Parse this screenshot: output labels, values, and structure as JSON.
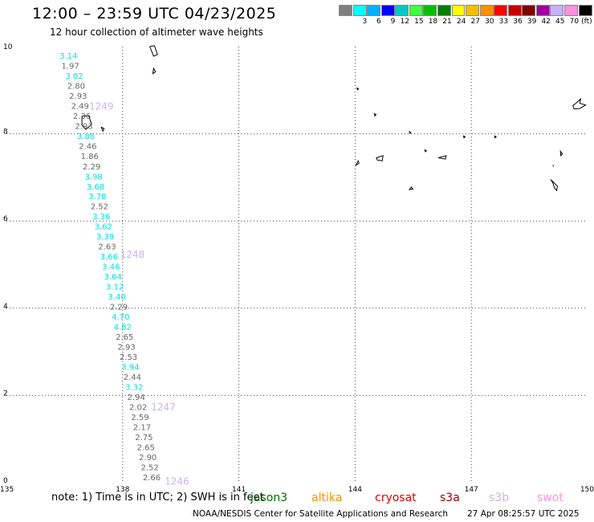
{
  "header": {
    "title": "12:00 – 23:59 UTC 04/23/2025",
    "subtitle": "12 hour collection of altimeter wave heights"
  },
  "color_scale": {
    "unit_label": "(ft)",
    "bins": [
      {
        "label": "",
        "color": "#808080"
      },
      {
        "label": "3",
        "color": "#00ffff"
      },
      {
        "label": "6",
        "color": "#00b0ff"
      },
      {
        "label": "9",
        "color": "#0000ff"
      },
      {
        "label": "12",
        "color": "#00c8c8"
      },
      {
        "label": "15",
        "color": "#40ff40"
      },
      {
        "label": "18",
        "color": "#00c000"
      },
      {
        "label": "21",
        "color": "#008000"
      },
      {
        "label": "24",
        "color": "#ffff00"
      },
      {
        "label": "27",
        "color": "#f0c000"
      },
      {
        "label": "30",
        "color": "#ff9000"
      },
      {
        "label": "33",
        "color": "#ff0000"
      },
      {
        "label": "36",
        "color": "#c80000"
      },
      {
        "label": "39",
        "color": "#800000"
      },
      {
        "label": "42",
        "color": "#a000a0"
      },
      {
        "label": "45",
        "color": "#c8b0ff"
      },
      {
        "label": "70",
        "color": "#ff90e0"
      },
      {
        "label": "",
        "color": "#000000"
      }
    ]
  },
  "chart_data": {
    "type": "scatter",
    "title": "12:00 – 23:59 UTC 04/23/2025",
    "subtitle": "12 hour collection of altimeter wave heights",
    "xlim": [
      135,
      150
    ],
    "ylim": [
      0,
      10
    ],
    "x_ticks": [
      {
        "value": 135,
        "label": "135"
      },
      {
        "value": 138,
        "label": "138"
      },
      {
        "value": 141,
        "label": "141"
      },
      {
        "value": 144,
        "label": "144"
      },
      {
        "value": 147,
        "label": "147"
      },
      {
        "value": 150,
        "label": "150"
      }
    ],
    "y_ticks": [
      {
        "value": 0,
        "label": "0"
      },
      {
        "value": 2,
        "label": "2"
      },
      {
        "value": 4,
        "label": "4"
      },
      {
        "value": 6,
        "label": "6"
      },
      {
        "value": 8,
        "label": "8"
      },
      {
        "value": 10,
        "label": "10"
      }
    ],
    "grid": true,
    "grid_style": "dotted",
    "label_colors": {
      "low": "#666666",
      "mid": "#00e0e0"
    },
    "series": [
      {
        "name": "jason3",
        "points": [
          {
            "lon": 136.6,
            "lat": 9.8,
            "swh": "3.14"
          },
          {
            "lon": 136.65,
            "lat": 9.57,
            "swh": "1.97"
          },
          {
            "lon": 136.75,
            "lat": 9.34,
            "swh": "3.02"
          },
          {
            "lon": 136.8,
            "lat": 9.11,
            "swh": "2.80"
          },
          {
            "lon": 136.85,
            "lat": 8.88,
            "swh": "2.93"
          },
          {
            "lon": 136.9,
            "lat": 8.65,
            "swh": "2.49"
          },
          {
            "lon": 136.95,
            "lat": 8.42,
            "swh": "2.36"
          },
          {
            "lon": 137.0,
            "lat": 8.19,
            "swh": "2.93"
          },
          {
            "lon": 137.05,
            "lat": 7.96,
            "swh": "3.88"
          },
          {
            "lon": 137.1,
            "lat": 7.73,
            "swh": "2.46"
          },
          {
            "lon": 137.15,
            "lat": 7.5,
            "swh": "1.86"
          },
          {
            "lon": 137.2,
            "lat": 7.26,
            "swh": "2.29"
          },
          {
            "lon": 137.25,
            "lat": 7.03,
            "swh": "3.98"
          },
          {
            "lon": 137.3,
            "lat": 6.8,
            "swh": "3.68"
          },
          {
            "lon": 137.35,
            "lat": 6.57,
            "swh": "3.78"
          },
          {
            "lon": 137.4,
            "lat": 6.34,
            "swh": "2.52"
          },
          {
            "lon": 137.45,
            "lat": 6.11,
            "swh": "3.36"
          },
          {
            "lon": 137.5,
            "lat": 5.88,
            "swh": "3.62"
          },
          {
            "lon": 137.55,
            "lat": 5.65,
            "swh": "3.39"
          },
          {
            "lon": 137.6,
            "lat": 5.42,
            "swh": "2.63"
          },
          {
            "lon": 137.65,
            "lat": 5.19,
            "swh": "3.66"
          },
          {
            "lon": 137.7,
            "lat": 4.96,
            "swh": "3.46"
          },
          {
            "lon": 137.75,
            "lat": 4.73,
            "swh": "3.64"
          },
          {
            "lon": 137.8,
            "lat": 4.5,
            "swh": "3.12"
          },
          {
            "lon": 137.85,
            "lat": 4.27,
            "swh": "3.40"
          },
          {
            "lon": 137.9,
            "lat": 4.04,
            "swh": "2.29"
          },
          {
            "lon": 137.95,
            "lat": 3.81,
            "swh": "4.70"
          },
          {
            "lon": 138.0,
            "lat": 3.58,
            "swh": "4.82"
          },
          {
            "lon": 138.05,
            "lat": 3.35,
            "swh": "2.65"
          },
          {
            "lon": 138.1,
            "lat": 3.12,
            "swh": "2.93"
          },
          {
            "lon": 138.15,
            "lat": 2.89,
            "swh": "2.53"
          },
          {
            "lon": 138.2,
            "lat": 2.66,
            "swh": "3.94"
          },
          {
            "lon": 138.25,
            "lat": 2.43,
            "swh": "2.44"
          },
          {
            "lon": 138.3,
            "lat": 2.2,
            "swh": "3.32"
          },
          {
            "lon": 138.35,
            "lat": 1.97,
            "swh": "2.94"
          },
          {
            "lon": 138.4,
            "lat": 1.74,
            "swh": "2.02"
          },
          {
            "lon": 138.45,
            "lat": 1.51,
            "swh": "2.59"
          },
          {
            "lon": 138.5,
            "lat": 1.28,
            "swh": "2.17"
          },
          {
            "lon": 138.55,
            "lat": 1.05,
            "swh": "2.75"
          },
          {
            "lon": 138.6,
            "lat": 0.82,
            "swh": "2.65"
          },
          {
            "lon": 138.65,
            "lat": 0.59,
            "swh": "2.90"
          },
          {
            "lon": 138.7,
            "lat": 0.36,
            "swh": "2.52"
          },
          {
            "lon": 138.75,
            "lat": 0.13,
            "swh": "2.66"
          }
        ]
      }
    ],
    "time_labels": [
      {
        "lon": 137.45,
        "lat": 8.65,
        "text": "1249"
      },
      {
        "lon": 138.25,
        "lat": 5.25,
        "text": "1248"
      },
      {
        "lon": 139.05,
        "lat": 1.75,
        "text": "1247"
      },
      {
        "lon": 139.4,
        "lat": 0.05,
        "text": "1246"
      }
    ],
    "time_label_color": "#c8b4f0",
    "land": [
      [
        [
          138.7,
          10.0
        ],
        [
          138.8,
          9.78
        ],
        [
          138.9,
          9.82
        ],
        [
          138.82,
          10.02
        ]
      ],
      [
        [
          138.8,
          9.5
        ],
        [
          138.78,
          9.38
        ],
        [
          138.85,
          9.42
        ]
      ],
      [
        [
          136.95,
          8.4
        ],
        [
          137.12,
          8.42
        ],
        [
          137.2,
          8.22
        ],
        [
          137.05,
          8.1
        ],
        [
          136.95,
          8.2
        ]
      ],
      [
        [
          137.45,
          8.15
        ],
        [
          137.52,
          8.12
        ],
        [
          137.49,
          8.06
        ]
      ],
      [
        [
          144.05,
          9.05
        ],
        [
          144.09,
          9.03
        ],
        [
          144.06,
          9.01
        ]
      ],
      [
        [
          144.5,
          8.46
        ],
        [
          144.54,
          8.44
        ],
        [
          144.51,
          8.41
        ]
      ],
      [
        [
          145.4,
          8.05
        ],
        [
          145.44,
          8.03
        ],
        [
          145.41,
          8.01
        ]
      ],
      [
        [
          144.55,
          7.45
        ],
        [
          144.72,
          7.5
        ],
        [
          144.7,
          7.38
        ],
        [
          144.57,
          7.4
        ]
      ],
      [
        [
          145.8,
          7.63
        ],
        [
          145.84,
          7.61
        ],
        [
          145.81,
          7.59
        ]
      ],
      [
        [
          146.15,
          7.45
        ],
        [
          146.35,
          7.5
        ],
        [
          146.33,
          7.42
        ]
      ],
      [
        [
          145.45,
          6.78
        ],
        [
          145.4,
          6.72
        ],
        [
          145.49,
          6.73
        ]
      ],
      [
        [
          144.1,
          7.32
        ],
        [
          144.02,
          7.28
        ],
        [
          144.08,
          7.38
        ]
      ],
      [
        [
          146.8,
          7.95
        ],
        [
          146.84,
          7.93
        ],
        [
          146.81,
          7.91
        ]
      ],
      [
        [
          147.6,
          7.95
        ],
        [
          147.64,
          7.93
        ],
        [
          147.61,
          7.91
        ]
      ],
      [
        [
          149.62,
          8.65
        ],
        [
          149.7,
          8.7
        ],
        [
          149.82,
          8.8
        ],
        [
          149.8,
          8.7
        ],
        [
          149.95,
          8.66
        ],
        [
          149.8,
          8.58
        ],
        [
          149.65,
          8.57
        ]
      ],
      [
        [
          149.3,
          7.6
        ],
        [
          149.35,
          7.54
        ],
        [
          149.31,
          7.5
        ]
      ],
      [
        [
          149.1,
          7.28
        ],
        [
          149.13,
          7.25
        ]
      ],
      [
        [
          149.05,
          6.95
        ],
        [
          149.1,
          6.88
        ],
        [
          149.15,
          6.75
        ],
        [
          149.2,
          6.7
        ],
        [
          149.22,
          6.8
        ]
      ]
    ]
  },
  "legend": {
    "note": "note:  1) Time is in UTC;  2) SWH is in feet",
    "satellites": [
      {
        "name": "jason3",
        "color": "#007000"
      },
      {
        "name": "altika",
        "color": "#ff9000"
      },
      {
        "name": "cryosat",
        "color": "#e00000"
      },
      {
        "name": "s3a",
        "color": "#a00000"
      },
      {
        "name": "s3b",
        "color": "#c8b4f0"
      },
      {
        "name": "swot",
        "color": "#ff90e0"
      }
    ]
  },
  "footer": {
    "credit": "NOAA/NESDIS Center for Satellite Applications and Research",
    "timestamp": "27 Apr 08:25:57 UTC 2025"
  }
}
